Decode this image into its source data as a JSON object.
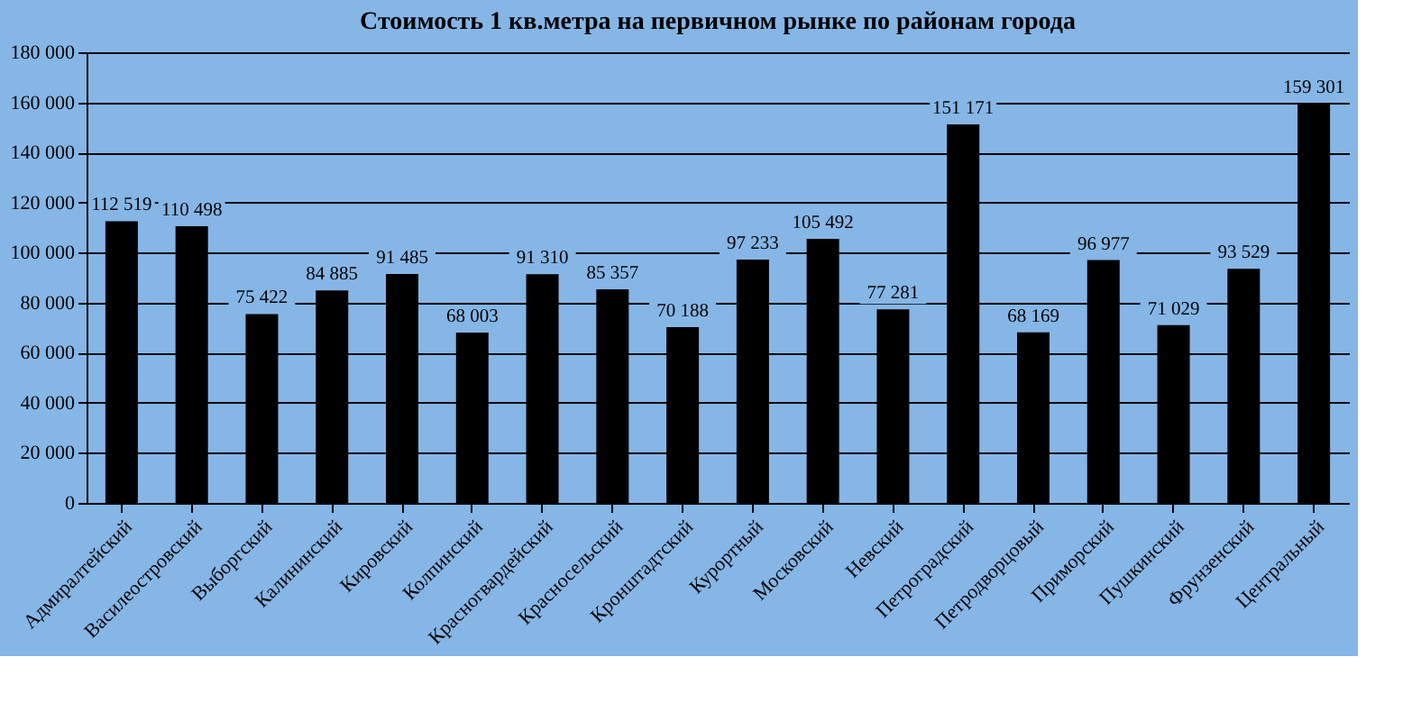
{
  "chart_data": {
    "type": "bar",
    "title": "Стоимость 1 кв.метра на первичном рынке по районам города",
    "categories": [
      "Адмиралтейский",
      "Василеостровский",
      "Выборгский",
      "Калининский",
      "Кировский",
      "Колпинский",
      "Красногвардейский",
      "Красносельский",
      "Кронштадтский",
      "Курортный",
      "Московский",
      "Невский",
      "Петроградский",
      "Петродворцовый",
      "Приморский",
      "Пушкинский",
      "Фрунзенский",
      "Центральный"
    ],
    "values": [
      112519,
      110498,
      75422,
      84885,
      91485,
      68003,
      91310,
      85357,
      70188,
      97233,
      105492,
      77281,
      151171,
      68169,
      96977,
      71029,
      93529,
      159301
    ],
    "value_labels": [
      "112 519",
      "110 498",
      "75 422",
      "84 885",
      "91 485",
      "68 003",
      "91 310",
      "85 357",
      "70 188",
      "97 233",
      "105 492",
      "77 281",
      "151 171",
      "68 169",
      "96 977",
      "71 029",
      "93 529",
      "159 301"
    ],
    "color": "#000000",
    "ylim": [
      0,
      180000
    ],
    "yticks": [
      0,
      {
        "value": 20000,
        "label": "20 000"
      },
      {
        "value": 40000,
        "label": "40 000"
      },
      {
        "value": 60000,
        "label": "60 000"
      },
      {
        "value": 80000,
        "label": "80 000"
      },
      {
        "value": 100000,
        "label": "100 000"
      },
      {
        "value": 120000,
        "label": "120 000"
      },
      {
        "value": 140000,
        "label": "140 000"
      },
      {
        "value": 160000,
        "label": "160 000"
      },
      {
        "value": 180000,
        "label": "180 000"
      }
    ],
    "grid": "y"
  }
}
